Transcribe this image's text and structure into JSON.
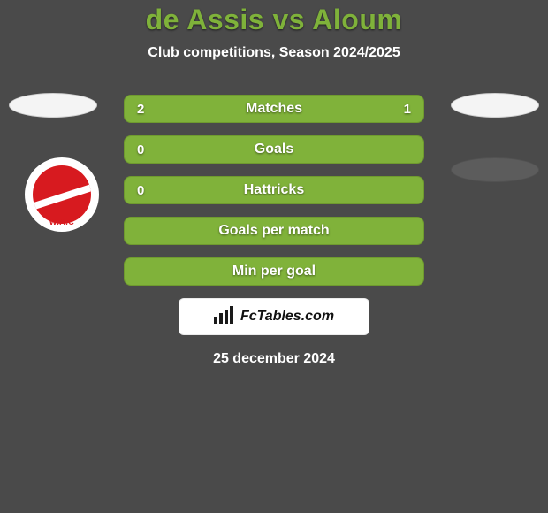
{
  "colors": {
    "page_bg": "#4a4a4a",
    "title_color": "#7fb23a",
    "text_color": "#ffffff",
    "bar_border": "#6f9a2f",
    "bar_bg": "#5e8a29",
    "bar_fill": "#80b23a",
    "ellipse_bg": "#f4f4f4",
    "logo_outer": "#ffffff",
    "logo_inner": "#d71a1f",
    "logo_stripe": "#ffffff",
    "logo_text": "#d71a1f",
    "ellipse2r_bg": "#5c5c5c",
    "wm_icon": "#1a1a1a"
  },
  "title": "de Assis vs Aloum",
  "subtitle": "Club competitions, Season 2024/2025",
  "rows": [
    {
      "label": "Matches",
      "left": "2",
      "right": "1",
      "left_pct": 66.7,
      "right_pct": 33.3
    },
    {
      "label": "Goals",
      "left": "0",
      "right": "",
      "left_pct": 100,
      "right_pct": 0
    },
    {
      "label": "Hattricks",
      "left": "0",
      "right": "",
      "left_pct": 100,
      "right_pct": 0
    },
    {
      "label": "Goals per match",
      "left": "",
      "right": "",
      "left_pct": 100,
      "right_pct": 0
    },
    {
      "label": "Min per goal",
      "left": "",
      "right": "",
      "left_pct": 100,
      "right_pct": 0
    }
  ],
  "logo_text": "W.A.C",
  "watermark": "FcTables.com",
  "date": "25 december 2024"
}
